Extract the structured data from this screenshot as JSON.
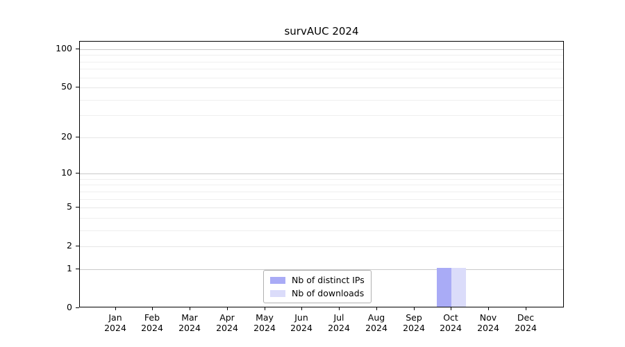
{
  "window": {
    "background": "#ffffff"
  },
  "chart_data": {
    "type": "bar",
    "title": "survAUC 2024",
    "xlabel": "",
    "ylabel": "",
    "categories": [
      "Jan 2024",
      "Feb 2024",
      "Mar 2024",
      "Apr 2024",
      "May 2024",
      "Jun 2024",
      "Jul 2024",
      "Aug 2024",
      "Sep 2024",
      "Oct 2024",
      "Nov 2024",
      "Dec 2024"
    ],
    "series": [
      {
        "name": "Nb of distinct IPs",
        "color": "#a9abf6",
        "values": [
          0,
          0,
          0,
          0,
          0,
          0,
          0,
          0,
          0,
          1,
          0,
          0
        ]
      },
      {
        "name": "Nb of downloads",
        "color": "#dbdcfa",
        "values": [
          0,
          0,
          0,
          0,
          0,
          0,
          0,
          0,
          0,
          1,
          0,
          0
        ]
      }
    ],
    "yscale": "log1p",
    "ylim": [
      0,
      115
    ],
    "yticks": [
      0,
      1,
      2,
      5,
      10,
      20,
      50,
      100
    ],
    "major_gridline_values": [
      1,
      10,
      100
    ],
    "minor_yticks": [
      3,
      4,
      6,
      7,
      8,
      9,
      30,
      40,
      60,
      70,
      80,
      90
    ],
    "grid": true,
    "legend": {
      "position": "lower center inside",
      "border_color": "#b0b0b0"
    },
    "colors": {
      "bar_distinct_ips": "#a9abf6",
      "bar_downloads": "#dbdcfa",
      "grid_major": "#c9c9c9",
      "grid_mid": "#e6e6e6",
      "grid_minor": "#efefef",
      "axis": "#000000",
      "text": "#000000"
    }
  }
}
